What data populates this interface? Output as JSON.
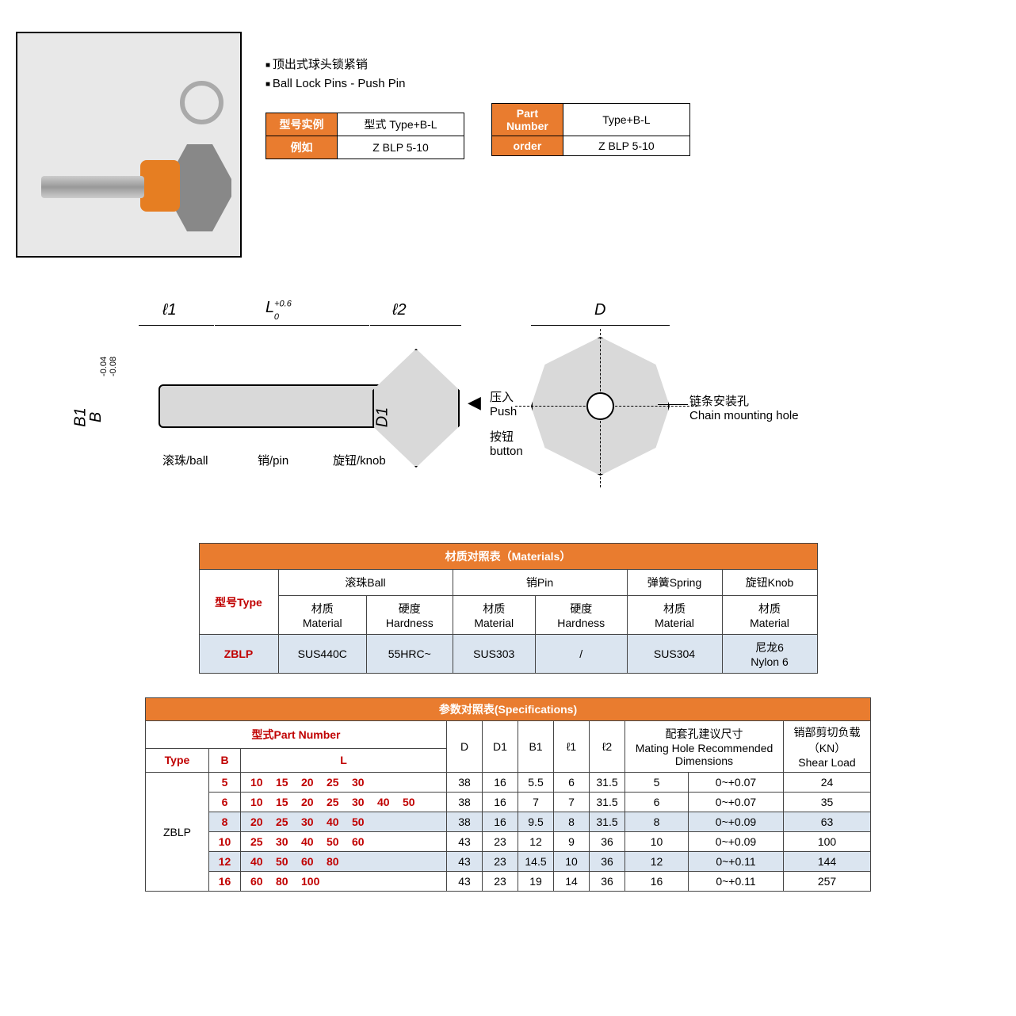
{
  "header": {
    "bullet1": "顶出式球头锁紧销",
    "bullet2": "Ball Lock Pins - Push Pin"
  },
  "miniTableCN": {
    "r1_label": "型号实例",
    "r1_val": "型式  Type+B-L",
    "r2_label": "例如",
    "r2_val": "Z BLP 5-10"
  },
  "miniTableEN": {
    "r1_label": "Part Number",
    "r1_val": "Type+B-L",
    "r2_label": "order",
    "r2_val": "Z BLP 5-10"
  },
  "drawing": {
    "l1": "ℓ1",
    "L": "L",
    "L_tol_top": "+0.6",
    "L_tol_bot": "0",
    "l2": "ℓ2",
    "D": "D",
    "B1": "B1",
    "B": "B",
    "B_tol_top": "-0.04",
    "B_tol_bot": "-0.08",
    "D1": "D1",
    "ball": "滚珠/ball",
    "pin": "销/pin",
    "knob": "旋钮/knob",
    "push": "压入\nPush",
    "button": "按钮\nbutton",
    "chain": "链条安装孔\nChain mounting hole"
  },
  "materials": {
    "title": "材质对照表（Materials）",
    "type_hdr": "型号Type",
    "ball_hdr": "滚珠Ball",
    "pin_hdr": "销Pin",
    "spring_hdr": "弹簧Spring",
    "knob_hdr": "旋钮Knob",
    "material_sub": "材质\nMaterial",
    "hardness_sub": "硬度\nHardness",
    "row_type": "ZBLP",
    "ball_mat": "SUS440C",
    "ball_hard": "55HRC~",
    "pin_mat": "SUS303",
    "pin_hard": "/",
    "spring_mat": "SUS304",
    "knob_mat": "尼龙6\nNylon 6"
  },
  "specs": {
    "title": "参数对照表(Specifications)",
    "partnumber_hdr": "型式Part Number",
    "type_hdr": "Type",
    "B_hdr": "B",
    "L_hdr": "L",
    "D_hdr": "D",
    "D1_hdr": "D1",
    "B1_hdr": "B1",
    "l1_hdr": "ℓ1",
    "l2_hdr": "ℓ2",
    "mating_hdr": "配套孔建议尺寸\nMating Hole Recommended\nDimensions",
    "shear_hdr": "销部剪切负载\n（KN）\nShear Load",
    "type_val": "ZBLP",
    "rows": [
      {
        "B": "5",
        "L": "10 15 20 25 30",
        "D": "38",
        "D1": "16",
        "B1": "5.5",
        "l1": "6",
        "l2": "31.5",
        "m1": "5",
        "m2": "0~+0.07",
        "shear": "24",
        "blue": false
      },
      {
        "B": "6",
        "L": "10 15 20 25 30 40 50",
        "D": "38",
        "D1": "16",
        "B1": "7",
        "l1": "7",
        "l2": "31.5",
        "m1": "6",
        "m2": "0~+0.07",
        "shear": "35",
        "blue": false
      },
      {
        "B": "8",
        "L": "20 25 30 40 50",
        "D": "38",
        "D1": "16",
        "B1": "9.5",
        "l1": "8",
        "l2": "31.5",
        "m1": "8",
        "m2": "0~+0.09",
        "shear": "63",
        "blue": true
      },
      {
        "B": "10",
        "L": "25 30 40 50 60",
        "D": "43",
        "D1": "23",
        "B1": "12",
        "l1": "9",
        "l2": "36",
        "m1": "10",
        "m2": "0~+0.09",
        "shear": "100",
        "blue": false
      },
      {
        "B": "12",
        "L": "40 50 60 80",
        "D": "43",
        "D1": "23",
        "B1": "14.5",
        "l1": "10",
        "l2": "36",
        "m1": "12",
        "m2": "0~+0.11",
        "shear": "144",
        "blue": true
      },
      {
        "B": "16",
        "L": "60 80 100",
        "D": "43",
        "D1": "23",
        "B1": "19",
        "l1": "14",
        "l2": "36",
        "m1": "16",
        "m2": "0~+0.11",
        "shear": "257",
        "blue": false
      }
    ]
  },
  "colors": {
    "accent": "#e97c2f",
    "red": "#c00000",
    "bluish": "#dbe5f0"
  }
}
